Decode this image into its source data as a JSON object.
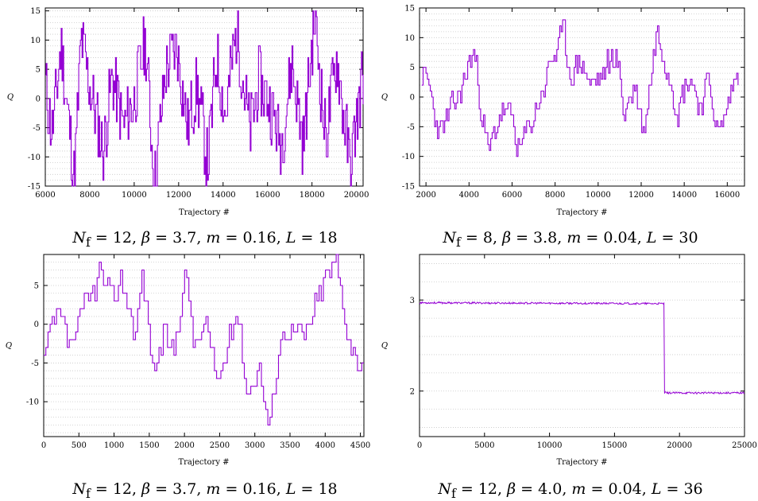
{
  "colors": {
    "series": "#9400d3",
    "grid": "#c8c8c8"
  },
  "chart_data": [
    {
      "type": "line",
      "caption": {
        "nf": "12",
        "beta": "3.7",
        "m": "0.16",
        "L": "18"
      },
      "xlabel": "Trajectory #",
      "ylabel": "Q",
      "xlim": [
        6000,
        20300
      ],
      "ylim": [
        -15,
        15.5
      ],
      "xticks": [
        6000,
        8000,
        10000,
        12000,
        14000,
        16000,
        18000,
        20000
      ],
      "yticks": [
        -15,
        -10,
        -5,
        0,
        5,
        10,
        15
      ],
      "grid": "horizontal-dotted",
      "step": true,
      "seed": 11,
      "amp": 6,
      "n": 380,
      "corr": 0.05,
      "x": [
        6000,
        6300,
        6700,
        7300,
        7600,
        8200,
        8600,
        9000,
        9500,
        10000,
        10500,
        10900,
        11400,
        11900,
        12400,
        12800,
        13300,
        13700,
        14100,
        14600,
        15200,
        15600,
        16100,
        16600,
        17100,
        17600,
        18100,
        18600,
        19100,
        19700,
        20300
      ],
      "y": [
        2,
        -6,
        9,
        -14,
        10,
        -2,
        -9,
        4,
        -5,
        0,
        10,
        -15,
        5,
        9,
        -5,
        2,
        -11,
        7,
        -3,
        12,
        -6,
        3,
        -1,
        -8,
        6,
        -8,
        14,
        -7,
        7,
        -12,
        5
      ]
    },
    {
      "type": "line",
      "caption": {
        "nf": "8",
        "beta": "3.8",
        "m": "0.04",
        "L": "30"
      },
      "xlabel": "Trajectory #",
      "ylabel": "Q",
      "xlim": [
        1700,
        16800
      ],
      "ylim": [
        -15,
        15
      ],
      "xticks": [
        2000,
        4000,
        6000,
        8000,
        10000,
        12000,
        14000,
        16000
      ],
      "yticks": [
        -15,
        -10,
        -5,
        0,
        5,
        10,
        15
      ],
      "grid": "horizontal-dotted",
      "step": true,
      "seed": 23,
      "amp": 2.5,
      "n": 220,
      "corr": 0.35,
      "x": [
        1800,
        2100,
        2600,
        3000,
        3500,
        4200,
        4700,
        4900,
        5500,
        6000,
        6300,
        6700,
        7300,
        7800,
        8400,
        8700,
        9200,
        9700,
        10300,
        10800,
        11200,
        11700,
        12100,
        12700,
        13200,
        13700,
        14200,
        14700,
        15200,
        15600,
        16100,
        16500
      ],
      "y": [
        4,
        2,
        -6,
        -4,
        0,
        8,
        -5,
        -10,
        -2,
        -4,
        -9,
        -6,
        0,
        6,
        10,
        4,
        6,
        2,
        4,
        8,
        -3,
        2,
        -6,
        11,
        6,
        -2,
        4,
        -1,
        2,
        -7,
        0,
        4
      ]
    },
    {
      "type": "line",
      "caption": {
        "nf": "12",
        "beta": "3.7",
        "m": "0.16",
        "L": "18"
      },
      "xlabel": "Trajectory #",
      "ylabel": "Q",
      "xlim": [
        0,
        4550
      ],
      "ylim": [
        -14.5,
        9
      ],
      "xticks": [
        0,
        500,
        1000,
        1500,
        2000,
        2500,
        3000,
        3500,
        4000,
        4500
      ],
      "yticks": [
        -10,
        -5,
        0,
        5
      ],
      "grid": "horizontal-dotted",
      "step": true,
      "seed": 37,
      "amp": 1.8,
      "n": 150,
      "corr": 0.3,
      "x": [
        0,
        100,
        200,
        350,
        500,
        650,
        800,
        950,
        1100,
        1300,
        1400,
        1550,
        1700,
        1850,
        2000,
        2150,
        2300,
        2450,
        2600,
        2750,
        2900,
        3050,
        3200,
        3350,
        3500,
        3700,
        3850,
        4000,
        4150,
        4300,
        4450,
        4550
      ],
      "y": [
        -5,
        -1,
        1,
        -3,
        0,
        3,
        7,
        3,
        6,
        -1,
        7,
        -6,
        -2,
        -4,
        7,
        -3,
        0,
        -8,
        -3,
        2,
        -9,
        -5,
        -14,
        -2,
        0,
        -2,
        2,
        6,
        8,
        0,
        -5,
        -4
      ]
    },
    {
      "type": "line",
      "caption": {
        "nf": "12",
        "beta": "4.0",
        "m": "0.04",
        "L": "36"
      },
      "xlabel": "Trajectory #",
      "ylabel": "Q",
      "xlim": [
        0,
        25000
      ],
      "ylim": [
        1.5,
        3.5
      ],
      "xticks": [
        0,
        5000,
        10000,
        15000,
        20000,
        25000
      ],
      "yticks": [
        2,
        3
      ],
      "grid": "horizontal-dotted",
      "step": false,
      "seed": 53,
      "amp": 0.01,
      "n": 500,
      "corr": 0.0,
      "x": [
        0,
        18800,
        18801,
        25000
      ],
      "y": [
        2.97,
        2.96,
        1.98,
        1.98
      ]
    }
  ]
}
